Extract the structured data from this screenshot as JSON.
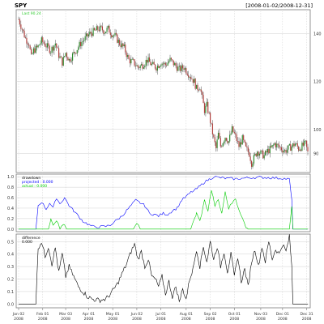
{
  "header": {
    "symbol": "SPY",
    "range": "[2008-01-02/2008-12-31]"
  },
  "colors": {
    "background": "#ffffff",
    "grid": "#d0d0d0",
    "frame": "#7a7a7a",
    "candle_up": "#2e8b2e",
    "candle_down": "#b0413e",
    "last_label": "#33cc33",
    "projected": "#0000ff",
    "actual": "#00cc00",
    "difference": "#000000"
  },
  "chart_data": [
    {
      "type": "candlestick",
      "title": "SPY",
      "last_label": "Last 90.24",
      "y_ticks": [
        90,
        100,
        120,
        140
      ],
      "ylim": [
        82,
        150
      ],
      "close_series": [
        {
          "x": 0,
          "y": 146
        },
        {
          "x": 3,
          "y": 142
        },
        {
          "x": 6,
          "y": 138
        },
        {
          "x": 9,
          "y": 136
        },
        {
          "x": 11,
          "y": 130
        },
        {
          "x": 13,
          "y": 133
        },
        {
          "x": 16,
          "y": 134
        },
        {
          "x": 20,
          "y": 137
        },
        {
          "x": 24,
          "y": 135
        },
        {
          "x": 28,
          "y": 133
        },
        {
          "x": 32,
          "y": 136
        },
        {
          "x": 35,
          "y": 131
        },
        {
          "x": 38,
          "y": 128
        },
        {
          "x": 41,
          "y": 132
        },
        {
          "x": 44,
          "y": 129
        },
        {
          "x": 47,
          "y": 131
        },
        {
          "x": 50,
          "y": 133
        },
        {
          "x": 54,
          "y": 136
        },
        {
          "x": 58,
          "y": 138
        },
        {
          "x": 62,
          "y": 140
        },
        {
          "x": 66,
          "y": 141
        },
        {
          "x": 69,
          "y": 142
        },
        {
          "x": 72,
          "y": 142
        },
        {
          "x": 75,
          "y": 141
        },
        {
          "x": 78,
          "y": 142
        },
        {
          "x": 81,
          "y": 140
        },
        {
          "x": 84,
          "y": 139
        },
        {
          "x": 88,
          "y": 136
        },
        {
          "x": 92,
          "y": 134
        },
        {
          "x": 96,
          "y": 129
        },
        {
          "x": 100,
          "y": 128
        },
        {
          "x": 104,
          "y": 126
        },
        {
          "x": 108,
          "y": 127
        },
        {
          "x": 112,
          "y": 129
        },
        {
          "x": 116,
          "y": 127
        },
        {
          "x": 120,
          "y": 126
        },
        {
          "x": 124,
          "y": 128
        },
        {
          "x": 128,
          "y": 127
        },
        {
          "x": 132,
          "y": 129
        },
        {
          "x": 136,
          "y": 127
        },
        {
          "x": 140,
          "y": 125
        },
        {
          "x": 144,
          "y": 126
        },
        {
          "x": 147,
          "y": 124
        },
        {
          "x": 150,
          "y": 122
        },
        {
          "x": 153,
          "y": 120
        },
        {
          "x": 155,
          "y": 117
        },
        {
          "x": 158,
          "y": 118
        },
        {
          "x": 160,
          "y": 113
        },
        {
          "x": 162,
          "y": 108
        },
        {
          "x": 164,
          "y": 110
        },
        {
          "x": 166,
          "y": 106
        },
        {
          "x": 168,
          "y": 101
        },
        {
          "x": 170,
          "y": 96
        },
        {
          "x": 172,
          "y": 92
        },
        {
          "x": 174,
          "y": 98
        },
        {
          "x": 176,
          "y": 93
        },
        {
          "x": 178,
          "y": 95
        },
        {
          "x": 180,
          "y": 97
        },
        {
          "x": 183,
          "y": 95
        },
        {
          "x": 186,
          "y": 100
        },
        {
          "x": 189,
          "y": 97
        },
        {
          "x": 192,
          "y": 93
        },
        {
          "x": 195,
          "y": 96
        },
        {
          "x": 198,
          "y": 92
        },
        {
          "x": 201,
          "y": 90
        },
        {
          "x": 203,
          "y": 86
        },
        {
          "x": 205,
          "y": 88
        },
        {
          "x": 208,
          "y": 91
        },
        {
          "x": 211,
          "y": 90
        },
        {
          "x": 214,
          "y": 89
        },
        {
          "x": 217,
          "y": 91
        },
        {
          "x": 220,
          "y": 92
        },
        {
          "x": 223,
          "y": 94
        },
        {
          "x": 226,
          "y": 93
        },
        {
          "x": 229,
          "y": 92
        },
        {
          "x": 232,
          "y": 91
        },
        {
          "x": 235,
          "y": 92
        },
        {
          "x": 238,
          "y": 93
        },
        {
          "x": 241,
          "y": 94
        },
        {
          "x": 244,
          "y": 92
        },
        {
          "x": 247,
          "y": 93
        },
        {
          "x": 250,
          "y": 94
        },
        {
          "x": 252,
          "y": 90.24
        }
      ]
    },
    {
      "type": "line",
      "title": "drawdown",
      "y_ticks": [
        0.0,
        0.2,
        0.4,
        0.6,
        0.8,
        1.0
      ],
      "ylim": [
        -0.05,
        1.05
      ],
      "series": [
        {
          "name": "projected : 0.000",
          "points": [
            {
              "x": 0,
              "y": 0.0
            },
            {
              "x": 15,
              "y": 0.0
            },
            {
              "x": 17,
              "y": 0.45
            },
            {
              "x": 20,
              "y": 0.52
            },
            {
              "x": 24,
              "y": 0.38
            },
            {
              "x": 27,
              "y": 0.5
            },
            {
              "x": 30,
              "y": 0.4
            },
            {
              "x": 33,
              "y": 0.6
            },
            {
              "x": 36,
              "y": 0.48
            },
            {
              "x": 40,
              "y": 0.6
            },
            {
              "x": 44,
              "y": 0.45
            },
            {
              "x": 48,
              "y": 0.35
            },
            {
              "x": 52,
              "y": 0.25
            },
            {
              "x": 56,
              "y": 0.15
            },
            {
              "x": 60,
              "y": 0.1
            },
            {
              "x": 64,
              "y": 0.05
            },
            {
              "x": 70,
              "y": 0.04
            },
            {
              "x": 76,
              "y": 0.05
            },
            {
              "x": 80,
              "y": 0.08
            },
            {
              "x": 86,
              "y": 0.18
            },
            {
              "x": 90,
              "y": 0.25
            },
            {
              "x": 94,
              "y": 0.35
            },
            {
              "x": 98,
              "y": 0.45
            },
            {
              "x": 102,
              "y": 0.55
            },
            {
              "x": 106,
              "y": 0.5
            },
            {
              "x": 110,
              "y": 0.45
            },
            {
              "x": 114,
              "y": 0.3
            },
            {
              "x": 118,
              "y": 0.28
            },
            {
              "x": 122,
              "y": 0.25
            },
            {
              "x": 126,
              "y": 0.3
            },
            {
              "x": 130,
              "y": 0.28
            },
            {
              "x": 134,
              "y": 0.35
            },
            {
              "x": 138,
              "y": 0.4
            },
            {
              "x": 142,
              "y": 0.55
            },
            {
              "x": 146,
              "y": 0.62
            },
            {
              "x": 150,
              "y": 0.7
            },
            {
              "x": 154,
              "y": 0.75
            },
            {
              "x": 158,
              "y": 0.82
            },
            {
              "x": 162,
              "y": 0.9
            },
            {
              "x": 166,
              "y": 0.95
            },
            {
              "x": 170,
              "y": 1.0
            },
            {
              "x": 180,
              "y": 0.97
            },
            {
              "x": 190,
              "y": 0.96
            },
            {
              "x": 200,
              "y": 0.98
            },
            {
              "x": 210,
              "y": 0.99
            },
            {
              "x": 220,
              "y": 0.98
            },
            {
              "x": 230,
              "y": 0.97
            },
            {
              "x": 236,
              "y": 0.95
            },
            {
              "x": 238,
              "y": 0.55
            },
            {
              "x": 239,
              "y": 0.0
            },
            {
              "x": 252,
              "y": 0.0
            }
          ]
        },
        {
          "name": "actual : 0.000",
          "points": [
            {
              "x": 0,
              "y": 0.0
            },
            {
              "x": 26,
              "y": 0.0
            },
            {
              "x": 28,
              "y": 0.2
            },
            {
              "x": 30,
              "y": 0.05
            },
            {
              "x": 33,
              "y": 0.18
            },
            {
              "x": 36,
              "y": 0.0
            },
            {
              "x": 40,
              "y": 0.1
            },
            {
              "x": 42,
              "y": 0.0
            },
            {
              "x": 100,
              "y": 0.0
            },
            {
              "x": 103,
              "y": 0.12
            },
            {
              "x": 106,
              "y": 0.0
            },
            {
              "x": 150,
              "y": 0.0
            },
            {
              "x": 155,
              "y": 0.3
            },
            {
              "x": 158,
              "y": 0.15
            },
            {
              "x": 162,
              "y": 0.55
            },
            {
              "x": 165,
              "y": 0.35
            },
            {
              "x": 168,
              "y": 0.75
            },
            {
              "x": 171,
              "y": 0.45
            },
            {
              "x": 174,
              "y": 0.55
            },
            {
              "x": 177,
              "y": 0.3
            },
            {
              "x": 180,
              "y": 0.7
            },
            {
              "x": 183,
              "y": 0.4
            },
            {
              "x": 186,
              "y": 0.5
            },
            {
              "x": 189,
              "y": 0.6
            },
            {
              "x": 192,
              "y": 0.35
            },
            {
              "x": 195,
              "y": 0.2
            },
            {
              "x": 198,
              "y": 0.05
            },
            {
              "x": 200,
              "y": 0.0
            },
            {
              "x": 236,
              "y": 0.0
            },
            {
              "x": 238,
              "y": 0.45
            },
            {
              "x": 239,
              "y": 0.0
            },
            {
              "x": 252,
              "y": 0.0
            }
          ]
        }
      ]
    },
    {
      "type": "line",
      "title": "difference",
      "value_label": "0.000",
      "y_ticks": [
        0.0,
        0.1,
        0.2,
        0.3,
        0.4,
        0.5
      ],
      "ylim": [
        -0.03,
        0.56
      ],
      "series": [
        {
          "points": [
            {
              "x": 0,
              "y": 0.0
            },
            {
              "x": 15,
              "y": 0.0
            },
            {
              "x": 17,
              "y": 0.45
            },
            {
              "x": 20,
              "y": 0.5
            },
            {
              "x": 23,
              "y": 0.38
            },
            {
              "x": 26,
              "y": 0.46
            },
            {
              "x": 29,
              "y": 0.32
            },
            {
              "x": 32,
              "y": 0.45
            },
            {
              "x": 35,
              "y": 0.25
            },
            {
              "x": 38,
              "y": 0.4
            },
            {
              "x": 41,
              "y": 0.22
            },
            {
              "x": 44,
              "y": 0.3
            },
            {
              "x": 48,
              "y": 0.22
            },
            {
              "x": 52,
              "y": 0.14
            },
            {
              "x": 56,
              "y": 0.1
            },
            {
              "x": 60,
              "y": 0.06
            },
            {
              "x": 64,
              "y": 0.04
            },
            {
              "x": 70,
              "y": 0.03
            },
            {
              "x": 76,
              "y": 0.04
            },
            {
              "x": 80,
              "y": 0.08
            },
            {
              "x": 86,
              "y": 0.16
            },
            {
              "x": 90,
              "y": 0.24
            },
            {
              "x": 94,
              "y": 0.32
            },
            {
              "x": 98,
              "y": 0.42
            },
            {
              "x": 101,
              "y": 0.48
            },
            {
              "x": 104,
              "y": 0.36
            },
            {
              "x": 107,
              "y": 0.42
            },
            {
              "x": 110,
              "y": 0.3
            },
            {
              "x": 113,
              "y": 0.36
            },
            {
              "x": 116,
              "y": 0.22
            },
            {
              "x": 119,
              "y": 0.2
            },
            {
              "x": 122,
              "y": 0.14
            },
            {
              "x": 125,
              "y": 0.22
            },
            {
              "x": 128,
              "y": 0.08
            },
            {
              "x": 131,
              "y": 0.18
            },
            {
              "x": 134,
              "y": 0.06
            },
            {
              "x": 137,
              "y": 0.14
            },
            {
              "x": 140,
              "y": 0.02
            },
            {
              "x": 143,
              "y": 0.12
            },
            {
              "x": 146,
              "y": 0.04
            },
            {
              "x": 149,
              "y": 0.2
            },
            {
              "x": 152,
              "y": 0.28
            },
            {
              "x": 155,
              "y": 0.44
            },
            {
              "x": 158,
              "y": 0.3
            },
            {
              "x": 161,
              "y": 0.46
            },
            {
              "x": 164,
              "y": 0.34
            },
            {
              "x": 167,
              "y": 0.5
            },
            {
              "x": 170,
              "y": 0.36
            },
            {
              "x": 173,
              "y": 0.46
            },
            {
              "x": 176,
              "y": 0.3
            },
            {
              "x": 179,
              "y": 0.42
            },
            {
              "x": 182,
              "y": 0.26
            },
            {
              "x": 185,
              "y": 0.4
            },
            {
              "x": 188,
              "y": 0.22
            },
            {
              "x": 191,
              "y": 0.38
            },
            {
              "x": 194,
              "y": 0.18
            },
            {
              "x": 197,
              "y": 0.28
            },
            {
              "x": 200,
              "y": 0.14
            },
            {
              "x": 203,
              "y": 0.34
            },
            {
              "x": 206,
              "y": 0.44
            },
            {
              "x": 209,
              "y": 0.3
            },
            {
              "x": 212,
              "y": 0.46
            },
            {
              "x": 215,
              "y": 0.34
            },
            {
              "x": 218,
              "y": 0.5
            },
            {
              "x": 221,
              "y": 0.36
            },
            {
              "x": 224,
              "y": 0.44
            },
            {
              "x": 227,
              "y": 0.4
            },
            {
              "x": 230,
              "y": 0.48
            },
            {
              "x": 233,
              "y": 0.42
            },
            {
              "x": 236,
              "y": 0.54
            },
            {
              "x": 238,
              "y": 0.3
            },
            {
              "x": 239,
              "y": 0.0
            },
            {
              "x": 252,
              "y": 0.0
            }
          ]
        }
      ]
    }
  ],
  "x_axis": {
    "ticks": [
      {
        "x": 0,
        "label": "Jan 02",
        "year": "2008"
      },
      {
        "x": 21,
        "label": "Feb 01",
        "year": "2008"
      },
      {
        "x": 41,
        "label": "Mar 03",
        "year": "2008"
      },
      {
        "x": 61,
        "label": "Apr 01",
        "year": "2008"
      },
      {
        "x": 82,
        "label": "May 01",
        "year": "2008"
      },
      {
        "x": 103,
        "label": "Jun 02",
        "year": "2008"
      },
      {
        "x": 124,
        "label": "Jul 01",
        "year": "2008"
      },
      {
        "x": 146,
        "label": "Aug 01",
        "year": "2008"
      },
      {
        "x": 167,
        "label": "Sep 02",
        "year": "2008"
      },
      {
        "x": 188,
        "label": "Oct 01",
        "year": "2008"
      },
      {
        "x": 211,
        "label": "Nov 03",
        "year": "2008"
      },
      {
        "x": 230,
        "label": "Dec 01",
        "year": "2008"
      },
      {
        "x": 251,
        "label": "Dec 31",
        "year": "2008"
      }
    ],
    "xlim": [
      0,
      252
    ]
  }
}
